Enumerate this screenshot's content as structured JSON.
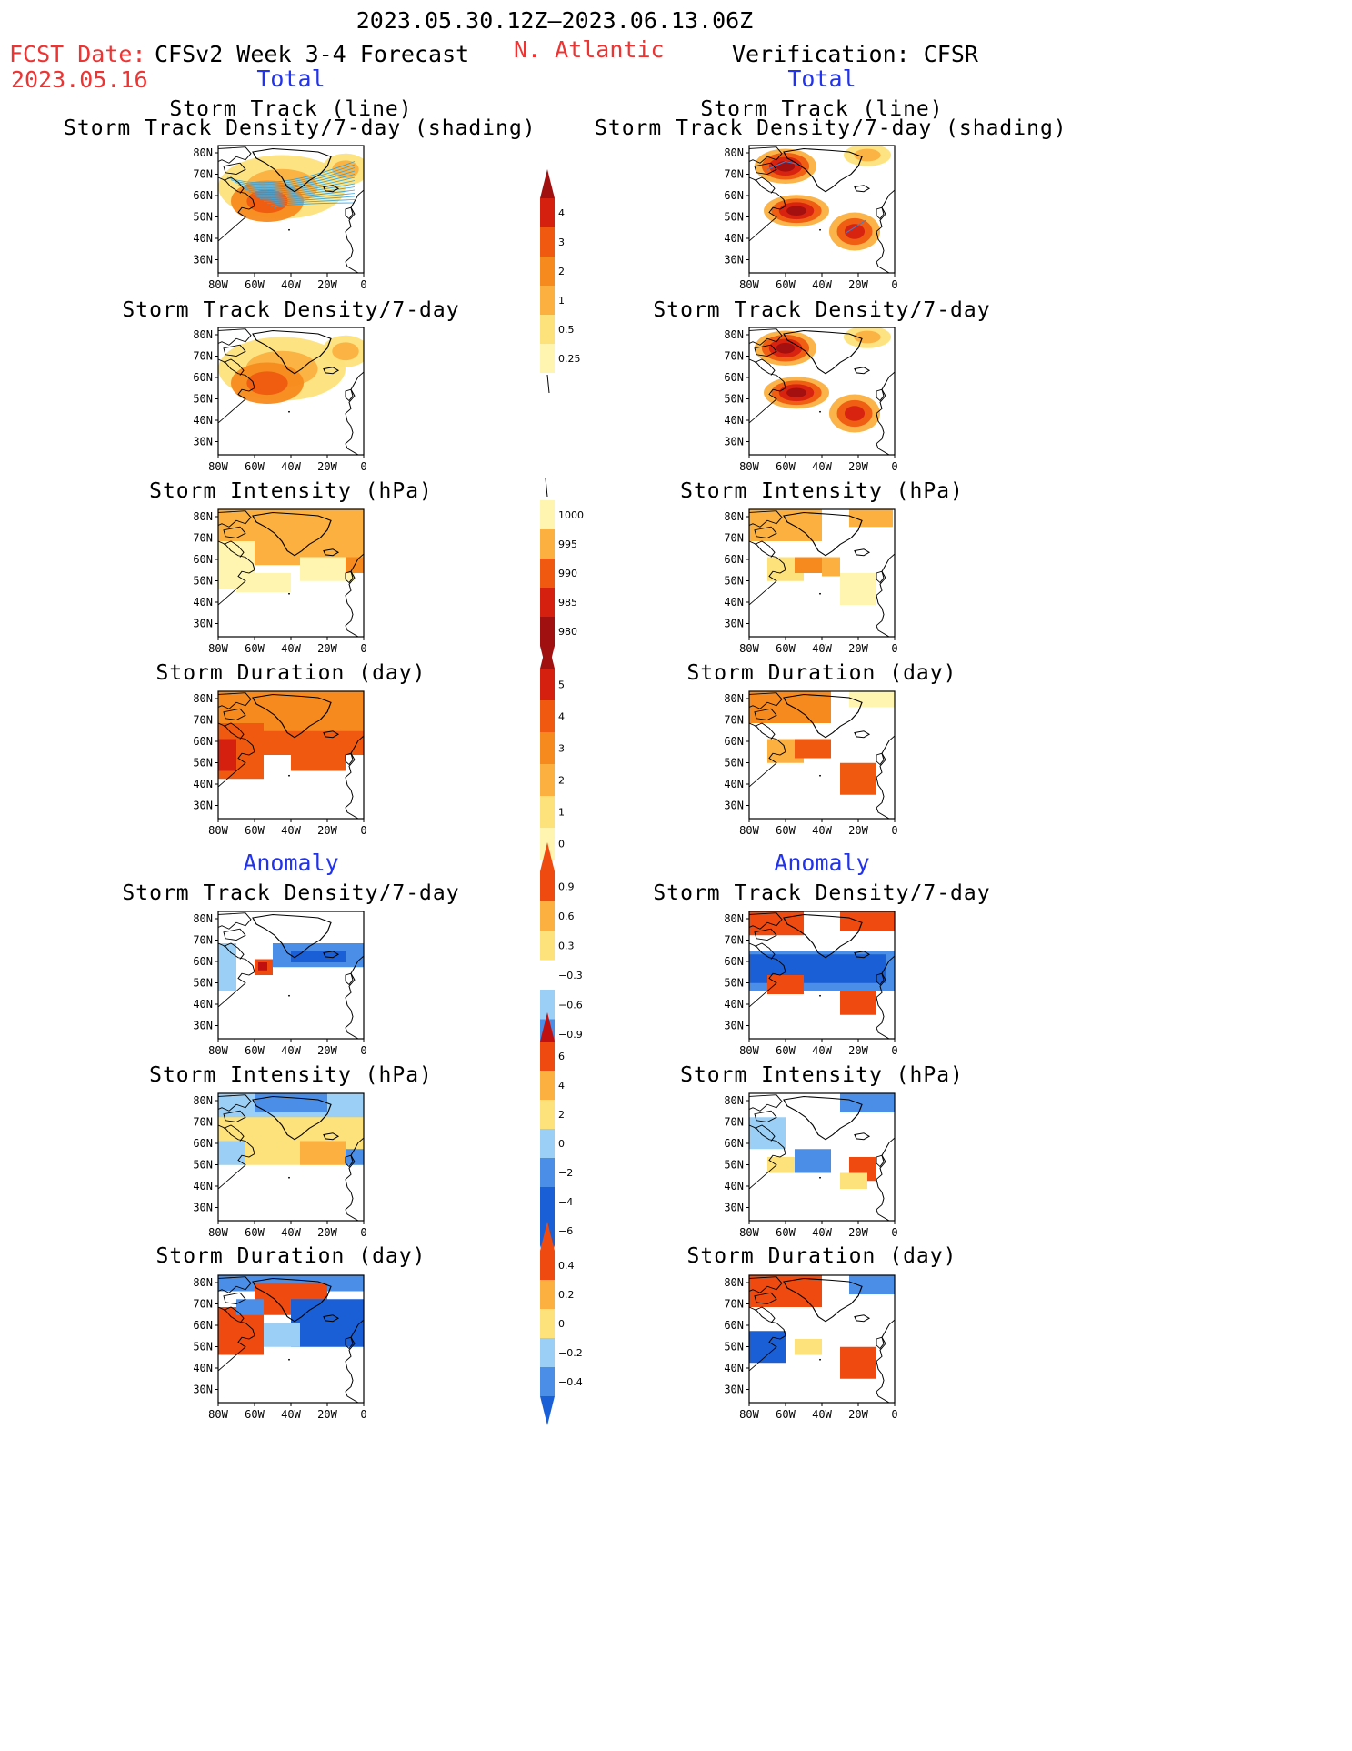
{
  "header": {
    "date_range": "2023.05.30.12Z–2023.06.13.06Z",
    "fcst_label": "FCST Date:",
    "fcst_date": "2023.05.16",
    "model_title": "CFSv2 Week 3-4 Forecast",
    "region": "N. Atlantic",
    "verification": "Verification: CFSR"
  },
  "section_labels": {
    "total": "Total",
    "anomaly": "Anomaly"
  },
  "panel_titles": {
    "track_line": "Storm Track (line)",
    "track_shading": "Storm Track Density/7-day (shading)",
    "density": "Storm Track Density/7-day",
    "intensity": "Storm Intensity (hPa)",
    "duration": "Storm Duration (day)"
  },
  "axes": {
    "lon_ticks": [
      "80W",
      "60W",
      "40W",
      "20W",
      "0"
    ],
    "lat_ticks": [
      "80N",
      "70N",
      "60N",
      "50N",
      "40N",
      "30N"
    ]
  },
  "colorbars": {
    "density_total": [
      "4",
      "3",
      "2",
      "1",
      "0.5",
      "0.25"
    ],
    "intensity_total": [
      "1000",
      "995",
      "990",
      "985",
      "980"
    ],
    "duration_total": [
      "5",
      "4",
      "3",
      "2",
      "1",
      "0"
    ],
    "density_anomaly": [
      "0.9",
      "0.6",
      "0.3",
      "−0.3",
      "−0.6",
      "−0.9"
    ],
    "intensity_anomaly": [
      "6",
      "4",
      "2",
      "0",
      "−2",
      "−4",
      "−6"
    ],
    "duration_anomaly": [
      "0.4",
      "0.2",
      "0",
      "−0.2",
      "−0.4"
    ]
  },
  "colors": {
    "title_red": "#ee3333",
    "label_blue": "#2233ee",
    "warm_scale": [
      "#fff5b0",
      "#fde17a",
      "#fbb040",
      "#f78a1e",
      "#ef5a10",
      "#d52010",
      "#a01010"
    ],
    "anomaly_scale": [
      "#1a5fd6",
      "#4a8ee8",
      "#9ccff5",
      "#ffffff",
      "#fde17a",
      "#fbb040",
      "#ef4a10",
      "#c01010"
    ]
  }
}
